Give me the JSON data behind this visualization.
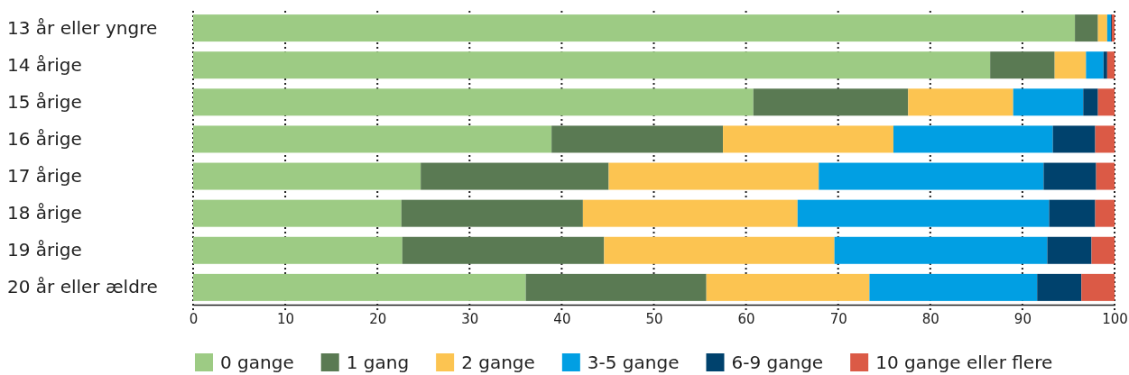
{
  "chart_data": {
    "type": "bar",
    "orientation": "horizontal",
    "stacked": true,
    "categories": [
      "13 år eller yngre",
      "14 årige",
      "15 årige",
      "16 årige",
      "17 årige",
      "18 årige",
      "19 årige",
      "20 år eller ældre"
    ],
    "series": [
      {
        "name": "0 gange",
        "color": "#9dcb84",
        "values": [
          95.7,
          86.5,
          60.8,
          38.9,
          24.7,
          22.6,
          22.7,
          36.1
        ]
      },
      {
        "name": "1 gang",
        "color": "#5a7a53",
        "values": [
          2.5,
          7.0,
          16.8,
          18.6,
          20.4,
          19.7,
          21.9,
          19.6
        ]
      },
      {
        "name": "2 gange",
        "color": "#fcc451",
        "values": [
          1.0,
          3.4,
          11.4,
          18.5,
          22.8,
          23.3,
          25.0,
          17.7
        ]
      },
      {
        "name": "3-5 gange",
        "color": "#019fe3",
        "values": [
          0.4,
          1.9,
          7.6,
          17.3,
          24.4,
          27.3,
          23.1,
          18.2
        ]
      },
      {
        "name": "6-9 gange",
        "color": "#00426d",
        "values": [
          0.1,
          0.4,
          1.6,
          4.6,
          5.7,
          5.0,
          4.8,
          4.8
        ]
      },
      {
        "name": "10 gange eller flere",
        "color": "#db5a46",
        "values": [
          0.3,
          0.8,
          1.8,
          2.1,
          2.0,
          2.1,
          2.5,
          3.6
        ]
      }
    ],
    "xlim": [
      0,
      100
    ],
    "xticks": [
      0,
      10,
      20,
      30,
      40,
      50,
      60,
      70,
      80,
      90,
      100
    ],
    "grid": "x",
    "legend": "bottom"
  }
}
